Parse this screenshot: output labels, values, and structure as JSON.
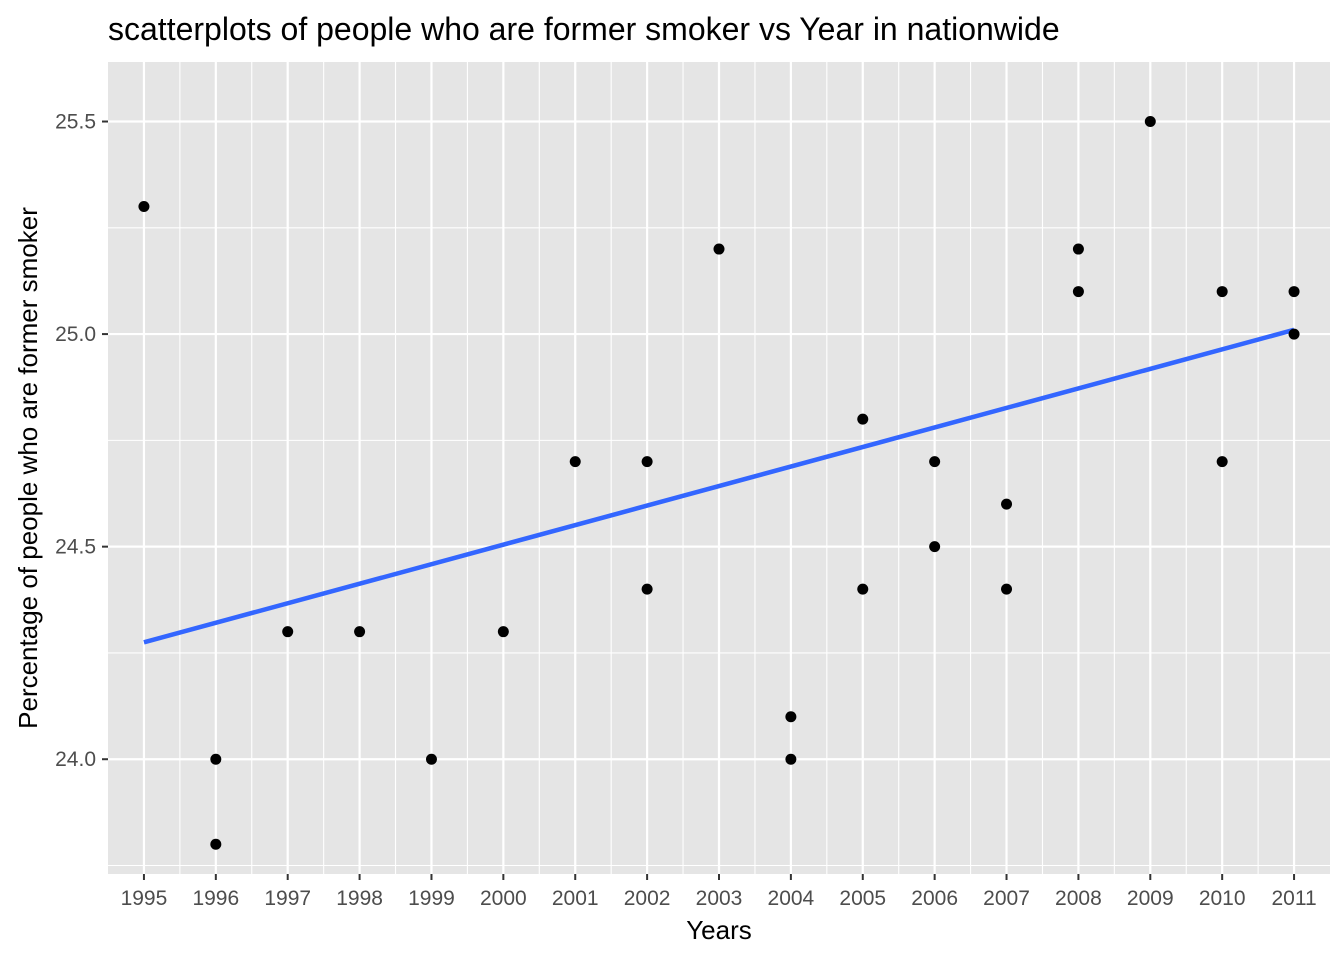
{
  "chart_data": {
    "type": "scatter",
    "title": "scatterplots of people who are former smoker vs Year in nationwide",
    "xlabel": "Years",
    "ylabel": "Percentage of people who are former smoker",
    "x_ticks": [
      "1995",
      "1996",
      "1997",
      "1998",
      "1999",
      "2000",
      "2001",
      "2002",
      "2003",
      "2004",
      "2005",
      "2006",
      "2007",
      "2008",
      "2009",
      "2010",
      "2011"
    ],
    "y_ticks": [
      "24.0",
      "24.5",
      "25.0",
      "25.5"
    ],
    "xlim": [
      1994.5,
      2011.5
    ],
    "ylim": [
      23.73,
      25.64
    ],
    "grid": true,
    "colors": {
      "panel_background": "#e5e5e5",
      "grid": "#ffffff",
      "points": "#000000",
      "trend_line": "#3366ff"
    },
    "points": [
      {
        "x": 1995,
        "y": 25.3
      },
      {
        "x": 1996,
        "y": 24.0
      },
      {
        "x": 1996,
        "y": 23.8
      },
      {
        "x": 1997,
        "y": 24.3
      },
      {
        "x": 1998,
        "y": 24.3
      },
      {
        "x": 1999,
        "y": 24.0
      },
      {
        "x": 2000,
        "y": 24.3
      },
      {
        "x": 2001,
        "y": 24.7
      },
      {
        "x": 2002,
        "y": 24.7
      },
      {
        "x": 2002,
        "y": 24.4
      },
      {
        "x": 2003,
        "y": 25.2
      },
      {
        "x": 2004,
        "y": 24.1
      },
      {
        "x": 2004,
        "y": 24.0
      },
      {
        "x": 2005,
        "y": 24.8
      },
      {
        "x": 2005,
        "y": 24.4
      },
      {
        "x": 2006,
        "y": 24.7
      },
      {
        "x": 2006,
        "y": 24.5
      },
      {
        "x": 2007,
        "y": 24.6
      },
      {
        "x": 2007,
        "y": 24.4
      },
      {
        "x": 2008,
        "y": 25.2
      },
      {
        "x": 2008,
        "y": 25.1
      },
      {
        "x": 2009,
        "y": 25.5
      },
      {
        "x": 2010,
        "y": 25.1
      },
      {
        "x": 2010,
        "y": 24.7
      },
      {
        "x": 2011,
        "y": 25.1
      },
      {
        "x": 2011,
        "y": 25.0
      }
    ],
    "trend_line": {
      "x": [
        1995,
        2011
      ],
      "y": [
        24.275,
        25.01
      ]
    }
  }
}
